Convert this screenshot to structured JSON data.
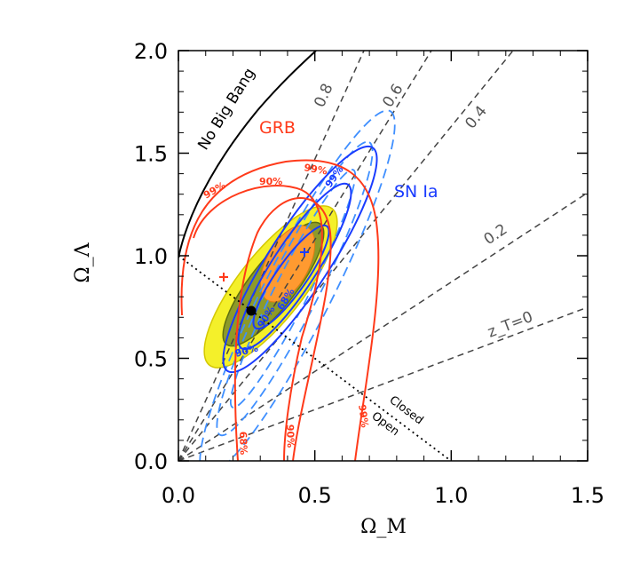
{
  "chart_data": {
    "type": "contour",
    "xlabel": "Ω_M",
    "ylabel": "Ω_Λ",
    "xlim": [
      0.0,
      1.5
    ],
    "ylim": [
      0.0,
      2.0
    ],
    "x_ticks": [
      "0.0",
      "0.5",
      "1.0",
      "1.5"
    ],
    "y_ticks": [
      "0.0",
      "0.5",
      "1.0",
      "1.5",
      "2.0"
    ],
    "grid": false,
    "colors": {
      "grb": "#ff3a1a",
      "sn": "#1a3cff",
      "sn_dashed": "#3f8fff",
      "combined_68": "#ff9a30",
      "combined_90": "#8d9a2a",
      "combined_99": "#f4f02a",
      "iso_z": "#555555",
      "no_big_bang": "#000000"
    },
    "annotations": {
      "no_big_bang": "No Big Bang",
      "grb": "GRB",
      "sn": "SN Ia",
      "closed": "Closed",
      "open": "Open",
      "grb_levels": [
        "68%",
        "90%",
        "99%"
      ],
      "sn_levels": [
        "68%",
        "90%",
        "99%"
      ],
      "combined_levels": [
        "68%",
        "90%",
        "99%"
      ],
      "transition_redshifts": [
        {
          "label": "z_T=0",
          "value": 0.0
        },
        {
          "label": "0.2",
          "value": 0.2
        },
        {
          "label": "0.4",
          "value": 0.4
        },
        {
          "label": "0.6",
          "value": 0.6
        },
        {
          "label": "0.8",
          "value": 0.8
        }
      ]
    },
    "points": {
      "grb_best_fit": [
        0.17,
        0.9
      ],
      "sn_best_fit": [
        0.47,
        1.02
      ],
      "combined_best_fit": [
        0.27,
        0.73
      ]
    },
    "flat_universe_line": [
      [
        0.0,
        1.0
      ],
      [
        1.0,
        0.0
      ]
    ]
  }
}
